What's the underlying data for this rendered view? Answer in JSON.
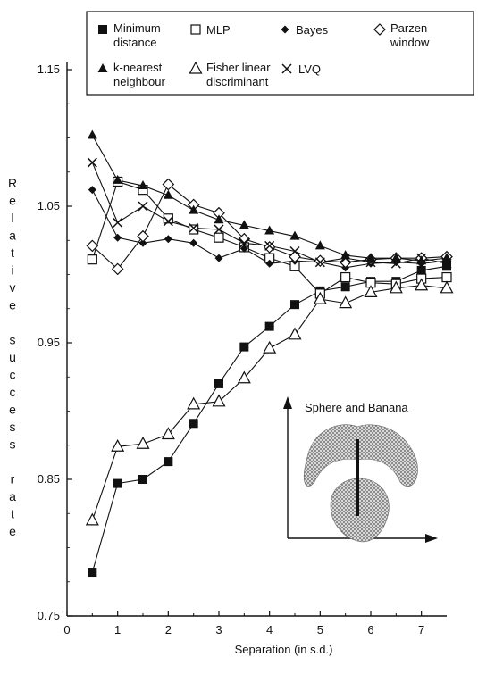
{
  "chart_data": {
    "type": "line",
    "title": "",
    "xlabel": "Separation (in s.d.)",
    "ylabel": "Relative success rate",
    "xlim": [
      0,
      7.5
    ],
    "ylim": [
      0.75,
      1.15
    ],
    "x_ticks": [
      "0",
      "1",
      "2",
      "3",
      "4",
      "5",
      "6",
      "7"
    ],
    "y_ticks": [
      "0.75",
      "0.85",
      "0.95",
      "1.05",
      "1.15"
    ],
    "legend_placement": "top",
    "x": [
      0.5,
      1.0,
      1.5,
      2.0,
      2.5,
      3.0,
      3.5,
      4.0,
      4.5,
      5.0,
      5.5,
      6.0,
      6.5,
      7.0,
      7.5
    ],
    "series": [
      {
        "name": "Minimum distance",
        "marker": "filled-square",
        "values": [
          0.782,
          0.847,
          0.85,
          0.863,
          0.891,
          0.92,
          0.947,
          0.962,
          0.978,
          0.988,
          0.991,
          0.995,
          0.995,
          1.003,
          1.006
        ]
      },
      {
        "name": "MLP",
        "marker": "open-square",
        "values": [
          1.011,
          1.068,
          1.062,
          1.041,
          1.033,
          1.027,
          1.02,
          1.012,
          1.006,
          0.986,
          0.998,
          0.994,
          0.993,
          0.997,
          0.998
        ]
      },
      {
        "name": "Bayes",
        "marker": "filled-diamond",
        "values": [
          1.062,
          1.027,
          1.023,
          1.026,
          1.023,
          1.012,
          1.019,
          1.008,
          1.01,
          1.009,
          1.005,
          1.008,
          1.009,
          1.008,
          1.01
        ]
      },
      {
        "name": "Parzen window",
        "marker": "open-diamond",
        "values": [
          1.021,
          1.004,
          1.028,
          1.066,
          1.051,
          1.045,
          1.026,
          1.02,
          1.013,
          1.01,
          1.009,
          1.011,
          1.012,
          1.012,
          1.013
        ]
      },
      {
        "name": "k-nearest neighbour",
        "marker": "filled-triangle",
        "values": [
          1.102,
          1.069,
          1.065,
          1.058,
          1.047,
          1.04,
          1.036,
          1.032,
          1.028,
          1.021,
          1.014,
          1.012,
          1.012,
          1.01,
          1.012
        ]
      },
      {
        "name": "Fisher linear discriminant",
        "marker": "open-triangle",
        "values": [
          0.82,
          0.874,
          0.876,
          0.883,
          0.905,
          0.907,
          0.924,
          0.946,
          0.956,
          0.982,
          0.979,
          0.987,
          0.99,
          0.992,
          0.99
        ]
      },
      {
        "name": "LVQ",
        "marker": "cross",
        "values": [
          1.082,
          1.038,
          1.05,
          1.039,
          1.034,
          1.033,
          1.023,
          1.021,
          1.017,
          1.009,
          1.012,
          1.009,
          1.008,
          1.012,
          1.008
        ]
      }
    ],
    "inset": {
      "title": "Sphere and Banana"
    }
  }
}
